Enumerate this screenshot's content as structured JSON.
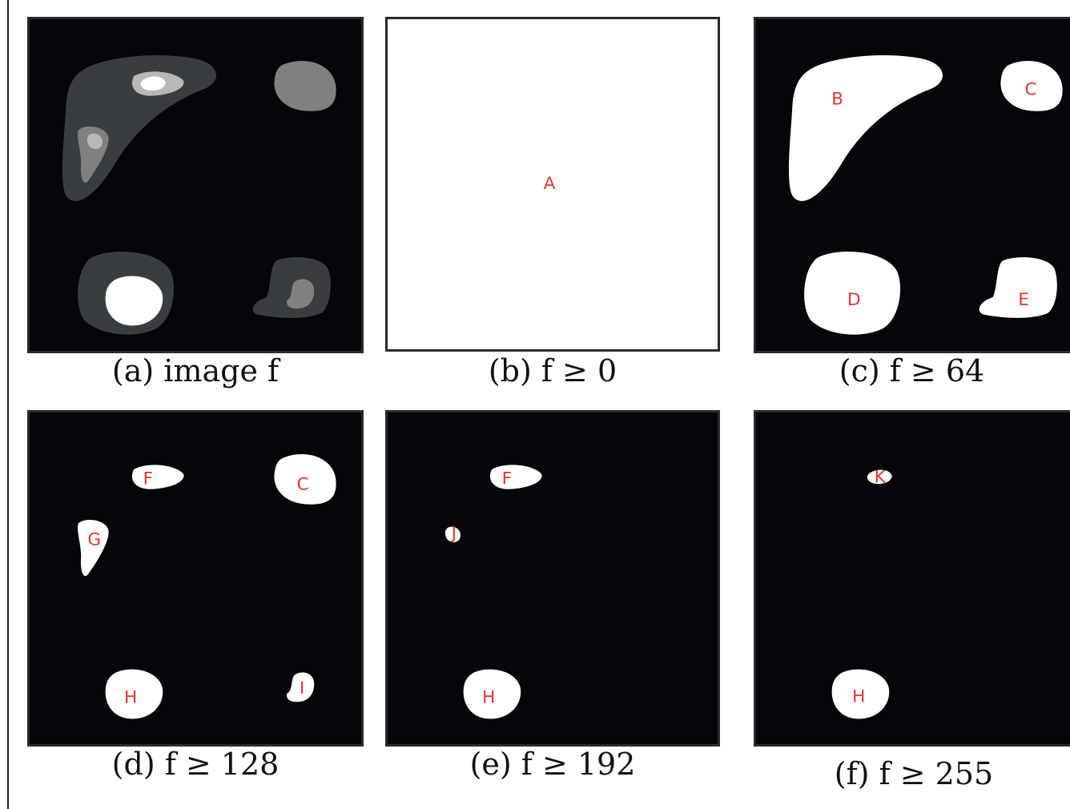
{
  "figure": {
    "panels": [
      {
        "id": "a",
        "caption": "(a) image f",
        "labels": []
      },
      {
        "id": "b",
        "caption": "(b) f ≥ 0",
        "labels": [
          "A"
        ]
      },
      {
        "id": "c",
        "caption": "(c) f ≥ 64",
        "labels": [
          "B",
          "C",
          "D",
          "E"
        ]
      },
      {
        "id": "d",
        "caption": "(d) f ≥ 128",
        "labels": [
          "F",
          "C",
          "G",
          "H",
          "I"
        ]
      },
      {
        "id": "e",
        "caption": "(e) f ≥ 192",
        "labels": [
          "F",
          "J",
          "H"
        ]
      },
      {
        "id": "f",
        "caption": "(f) f ≥ 255",
        "labels": [
          "K",
          "H"
        ]
      }
    ],
    "colors": {
      "background": "#05050a",
      "level_64": "#3a3d40",
      "level_128": "#808080",
      "level_192": "#b8b8b8",
      "level_255": "#ffffff",
      "label": "#e8362c"
    }
  }
}
